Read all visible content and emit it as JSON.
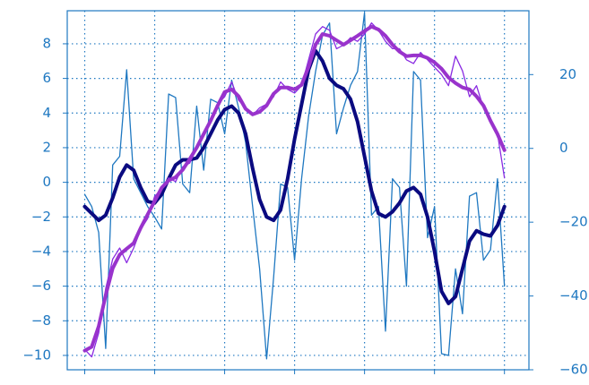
{
  "chart_data": {
    "type": "line",
    "x": [
      0,
      1,
      2,
      3,
      4,
      5,
      6,
      7,
      8,
      9,
      10,
      11,
      12,
      13,
      14,
      15,
      16,
      17,
      18,
      19,
      20,
      21,
      22,
      23,
      24,
      25,
      26,
      27,
      28,
      29,
      30,
      31,
      32,
      33,
      34,
      35,
      36,
      37,
      38,
      39,
      40,
      41,
      42,
      43,
      44,
      45,
      46,
      47,
      48,
      49,
      50,
      51,
      52,
      53,
      54,
      55,
      56,
      57,
      58,
      59,
      60
    ],
    "series": [
      {
        "color": "#1f78c1",
        "width": 1.3,
        "values": [
          -0.7,
          -1.4,
          -2.9,
          -9.6,
          1.0,
          1.5,
          6.5,
          0.2,
          -0.6,
          -1.4,
          -2.0,
          -2.7,
          5.1,
          4.9,
          -0.1,
          -0.6,
          4.4,
          0.7,
          4.8,
          4.6,
          2.8,
          5.9,
          4.3,
          2.3,
          -1.4,
          -5.0,
          -10.2,
          -5.5,
          -0.1,
          -0.3,
          -4.5,
          0.2,
          3.8,
          6.4,
          8.5,
          9.2,
          2.8,
          4.3,
          5.6,
          6.4,
          9.8,
          -1.9,
          -1.4,
          -8.6,
          0.2,
          -0.3,
          -6.0,
          6.4,
          5.9,
          -3.2,
          -1.4,
          -9.9,
          -10.0,
          -5.0,
          -7.6,
          -0.8,
          -0.6,
          -4.5,
          -3.9,
          0.2,
          -6.0
        ]
      },
      {
        "color": "#0a0a80",
        "width": 4,
        "values": [
          -1.4,
          -1.8,
          -2.2,
          -1.9,
          -0.9,
          0.3,
          1.0,
          0.7,
          -0.3,
          -1.1,
          -1.2,
          -0.7,
          0.2,
          1.0,
          1.3,
          1.3,
          1.4,
          2.0,
          2.8,
          3.6,
          4.2,
          4.4,
          4.0,
          2.8,
          0.8,
          -1.0,
          -2.0,
          -2.2,
          -1.6,
          0.2,
          2.5,
          4.5,
          6.5,
          7.6,
          7.0,
          6.0,
          5.6,
          5.4,
          4.8,
          3.5,
          1.5,
          -0.5,
          -1.8,
          -2.0,
          -1.7,
          -1.2,
          -0.5,
          -0.3,
          -0.7,
          -2.0,
          -4.0,
          -6.3,
          -7.0,
          -6.6,
          -5.0,
          -3.4,
          -2.8,
          -3.0,
          -3.1,
          -2.5,
          -1.4
        ]
      },
      {
        "color": "#8a2be2",
        "width": 1.3,
        "axis": "y2",
        "values": [
          -54.5,
          -56.5,
          -50,
          -38,
          -30,
          -27,
          -31,
          -27,
          -22,
          -19,
          -13,
          -11,
          -8,
          -9,
          -5,
          -4,
          0,
          4,
          8,
          12,
          14,
          18,
          13,
          11,
          9,
          11,
          12,
          14,
          18,
          16,
          15,
          17,
          24,
          31,
          33,
          32,
          27,
          28,
          30,
          29,
          31,
          34,
          32,
          29,
          27,
          27,
          24,
          23,
          26,
          24,
          22,
          20,
          17,
          25,
          21,
          14,
          17,
          11,
          7,
          4,
          -8
        ]
      },
      {
        "color": "#9933cc",
        "width": 4,
        "axis": "y2",
        "values": [
          -54.8,
          -53.8,
          -48.2,
          -39.8,
          -32.5,
          -28.8,
          -27.2,
          -25.7,
          -21.6,
          -17.9,
          -14.3,
          -10.7,
          -8.7,
          -7.8,
          -5.8,
          -2.9,
          0.2,
          3.9,
          7.5,
          11.6,
          15.3,
          16,
          14.1,
          10.7,
          9.2,
          9.9,
          11.6,
          14.8,
          16.5,
          16.5,
          16,
          17.2,
          22.1,
          28.1,
          31,
          30.5,
          29.3,
          28.1,
          29.3,
          30.5,
          31.8,
          33,
          32.2,
          30.5,
          28.1,
          26.2,
          25,
          25.2,
          25.2,
          24.5,
          23.3,
          21.6,
          19.2,
          17.7,
          16.5,
          16,
          14.1,
          11.6,
          7.5,
          3.9,
          -0.5
        ]
      }
    ],
    "xlim": [
      -2.5,
      63.5
    ],
    "xticks": [
      0,
      10,
      20,
      30,
      40,
      50,
      60
    ],
    "ylim": [
      -10.83,
      9.91
    ],
    "yticks": [
      {
        "value": -10,
        "label": "−10"
      },
      {
        "value": -8,
        "label": "−8"
      },
      {
        "value": -6,
        "label": "−6"
      },
      {
        "value": -4,
        "label": "−4"
      },
      {
        "value": -2,
        "label": "−2"
      },
      0,
      2,
      4,
      6,
      8
    ],
    "y2lim": [
      -60,
      37.3
    ],
    "y2ticks": [
      {
        "value": -60,
        "label": "−60"
      },
      {
        "value": -40,
        "label": "−40"
      },
      {
        "value": -20,
        "label": "−20"
      },
      0,
      20
    ],
    "grid": true,
    "axis_color": "#1f78c1"
  }
}
